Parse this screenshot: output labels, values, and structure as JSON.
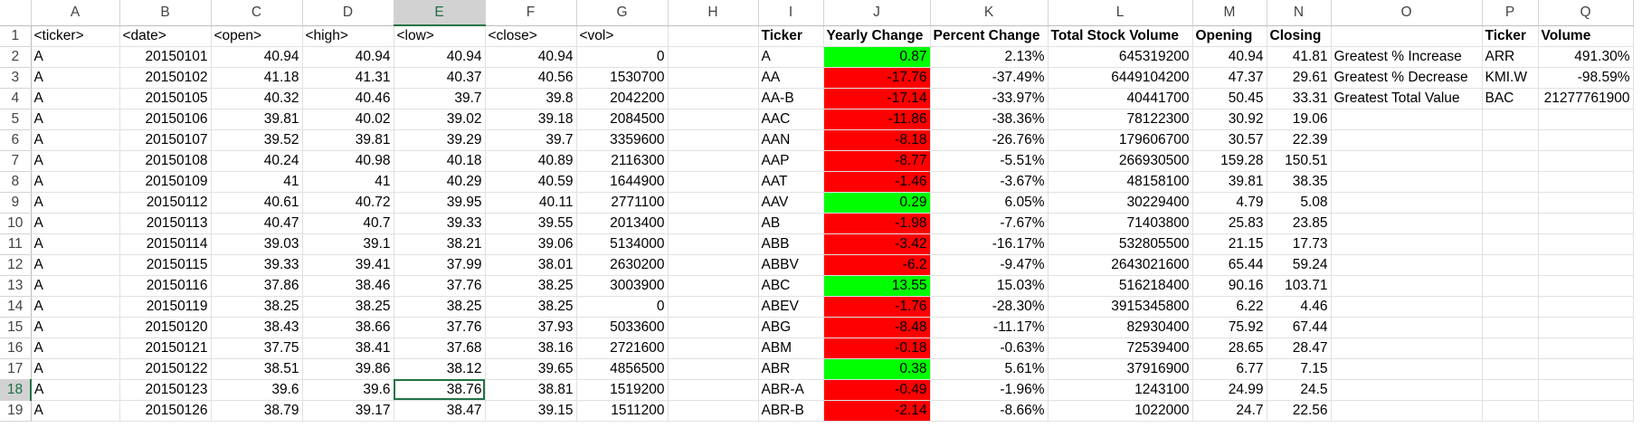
{
  "sheet": {
    "active_cell": "E18",
    "active_column": "E",
    "active_row": 18,
    "colors": {
      "positive": "#00ff00",
      "negative": "#ff0000",
      "selection_border": "#217346",
      "header_text": "#444444"
    },
    "columns": [
      "A",
      "B",
      "C",
      "D",
      "E",
      "F",
      "G",
      "H",
      "I",
      "J",
      "K",
      "L",
      "M",
      "N",
      "O",
      "P",
      "Q"
    ],
    "row_numbers": [
      1,
      2,
      3,
      4,
      5,
      6,
      7,
      8,
      9,
      10,
      11,
      12,
      13,
      14,
      15,
      16,
      17,
      18,
      19
    ],
    "header_row": [
      "<ticker>",
      "<date>",
      "<open>",
      "<high>",
      "<low>",
      "<close>",
      "<vol>",
      "",
      "Ticker",
      "Yearly Change",
      "Percent Change",
      "Total Stock Volume",
      "Opening",
      "Closing",
      "",
      "Ticker",
      "Volume"
    ],
    "rows": [
      [
        "A",
        "20150101",
        "40.94",
        "40.94",
        "40.94",
        "40.94",
        "0",
        "",
        "A",
        "0.87",
        "2.13%",
        "645319200",
        "40.94",
        "41.81",
        "Greatest % Increase",
        "ARR",
        "491.30%"
      ],
      [
        "A",
        "20150102",
        "41.18",
        "41.31",
        "40.37",
        "40.56",
        "1530700",
        "",
        "AA",
        "-17.76",
        "-37.49%",
        "6449104200",
        "47.37",
        "29.61",
        "Greatest % Decrease",
        "KMI.W",
        "-98.59%"
      ],
      [
        "A",
        "20150105",
        "40.32",
        "40.46",
        "39.7",
        "39.8",
        "2042200",
        "",
        "AA-B",
        "-17.14",
        "-33.97%",
        "40441700",
        "50.45",
        "33.31",
        "Greatest Total Value",
        "BAC",
        "21277761900"
      ],
      [
        "A",
        "20150106",
        "39.81",
        "40.02",
        "39.02",
        "39.18",
        "2084500",
        "",
        "AAC",
        "-11.86",
        "-38.36%",
        "78122300",
        "30.92",
        "19.06",
        "",
        "",
        ""
      ],
      [
        "A",
        "20150107",
        "39.52",
        "39.81",
        "39.29",
        "39.7",
        "3359600",
        "",
        "AAN",
        "-8.18",
        "-26.76%",
        "179606700",
        "30.57",
        "22.39",
        "",
        "",
        ""
      ],
      [
        "A",
        "20150108",
        "40.24",
        "40.98",
        "40.18",
        "40.89",
        "2116300",
        "",
        "AAP",
        "-8.77",
        "-5.51%",
        "266930500",
        "159.28",
        "150.51",
        "",
        "",
        ""
      ],
      [
        "A",
        "20150109",
        "41",
        "41",
        "40.29",
        "40.59",
        "1644900",
        "",
        "AAT",
        "-1.46",
        "-3.67%",
        "48158100",
        "39.81",
        "38.35",
        "",
        "",
        ""
      ],
      [
        "A",
        "20150112",
        "40.61",
        "40.72",
        "39.95",
        "40.11",
        "2771100",
        "",
        "AAV",
        "0.29",
        "6.05%",
        "30229400",
        "4.79",
        "5.08",
        "",
        "",
        ""
      ],
      [
        "A",
        "20150113",
        "40.47",
        "40.7",
        "39.33",
        "39.55",
        "2013400",
        "",
        "AB",
        "-1.98",
        "-7.67%",
        "71403800",
        "25.83",
        "23.85",
        "",
        "",
        ""
      ],
      [
        "A",
        "20150114",
        "39.03",
        "39.1",
        "38.21",
        "39.06",
        "5134000",
        "",
        "ABB",
        "-3.42",
        "-16.17%",
        "532805500",
        "21.15",
        "17.73",
        "",
        "",
        ""
      ],
      [
        "A",
        "20150115",
        "39.33",
        "39.41",
        "37.99",
        "38.01",
        "2630200",
        "",
        "ABBV",
        "-6.2",
        "-9.47%",
        "2643021600",
        "65.44",
        "59.24",
        "",
        "",
        ""
      ],
      [
        "A",
        "20150116",
        "37.86",
        "38.46",
        "37.76",
        "38.25",
        "3003900",
        "",
        "ABC",
        "13.55",
        "15.03%",
        "516218400",
        "90.16",
        "103.71",
        "",
        "",
        ""
      ],
      [
        "A",
        "20150119",
        "38.25",
        "38.25",
        "38.25",
        "38.25",
        "0",
        "",
        "ABEV",
        "-1.76",
        "-28.30%",
        "3915345800",
        "6.22",
        "4.46",
        "",
        "",
        ""
      ],
      [
        "A",
        "20150120",
        "38.43",
        "38.66",
        "37.76",
        "37.93",
        "5033600",
        "",
        "ABG",
        "-8.48",
        "-11.17%",
        "82930400",
        "75.92",
        "67.44",
        "",
        "",
        ""
      ],
      [
        "A",
        "20150121",
        "37.75",
        "38.41",
        "37.68",
        "38.16",
        "2721600",
        "",
        "ABM",
        "-0.18",
        "-0.63%",
        "72539400",
        "28.65",
        "28.47",
        "",
        "",
        ""
      ],
      [
        "A",
        "20150122",
        "38.51",
        "39.86",
        "38.12",
        "39.65",
        "4856500",
        "",
        "ABR",
        "0.38",
        "5.61%",
        "37916900",
        "6.77",
        "7.15",
        "",
        "",
        ""
      ],
      [
        "A",
        "20150123",
        "39.6",
        "39.6",
        "38.76",
        "38.81",
        "1519200",
        "",
        "ABR-A",
        "-0.49",
        "-1.96%",
        "1243100",
        "24.99",
        "24.5",
        "",
        "",
        ""
      ],
      [
        "A",
        "20150126",
        "38.79",
        "39.17",
        "38.47",
        "39.15",
        "1511200",
        "",
        "ABR-B",
        "-2.14",
        "-8.66%",
        "1022000",
        "24.7",
        "22.56",
        "",
        "",
        ""
      ]
    ]
  }
}
